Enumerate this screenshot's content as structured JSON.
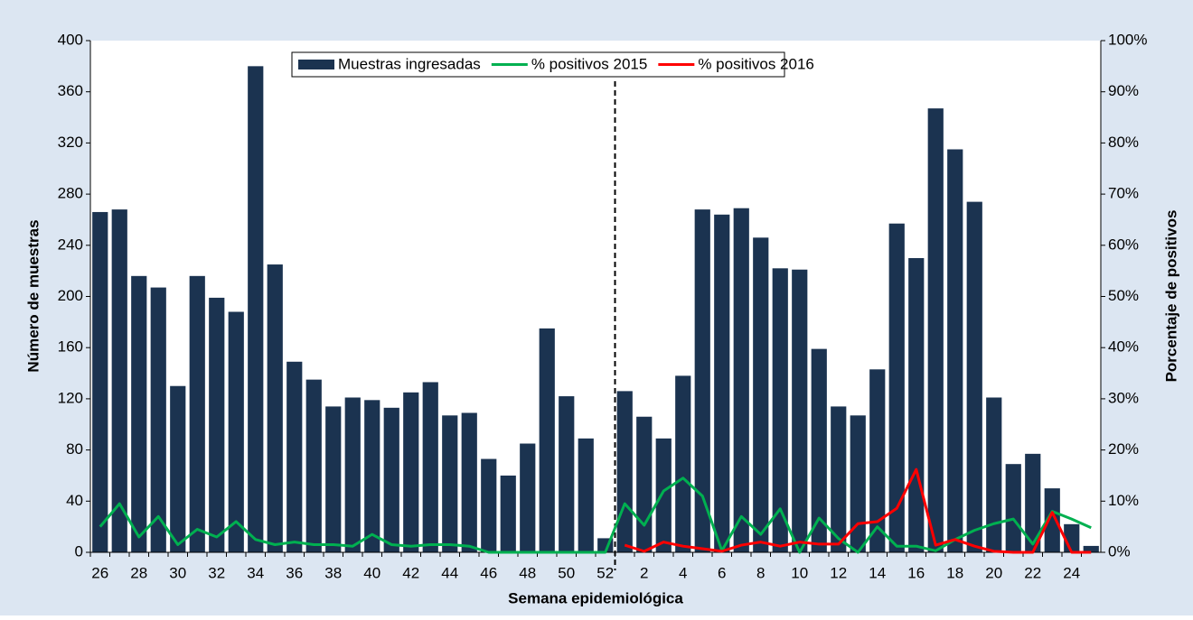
{
  "chart_data": {
    "type": "bar",
    "x_label": "Semana epidemiológica",
    "y_label": "Número de muestras",
    "y2_label": "Porcentaje de positivos",
    "categories": [
      26,
      null,
      28,
      null,
      30,
      null,
      32,
      null,
      34,
      null,
      36,
      null,
      38,
      null,
      40,
      null,
      42,
      null,
      44,
      null,
      46,
      null,
      48,
      null,
      50,
      null,
      52,
      null,
      2,
      null,
      4,
      null,
      6,
      null,
      8,
      null,
      10,
      null,
      12,
      null,
      14,
      null,
      16,
      null,
      18,
      null,
      20,
      null,
      22,
      null,
      24,
      null
    ],
    "series": [
      {
        "name": "Muestras ingresadas",
        "type": "bar",
        "color": "#1b3350",
        "values": [
          266,
          268,
          216,
          207,
          130,
          216,
          199,
          188,
          380,
          225,
          149,
          135,
          114,
          121,
          119,
          113,
          125,
          133,
          107,
          109,
          73,
          60,
          85,
          175,
          122,
          89,
          11,
          126,
          106,
          89,
          138,
          268,
          264,
          269,
          246,
          222,
          221,
          159,
          114,
          107,
          143,
          257,
          230,
          347,
          315,
          274,
          121,
          69,
          77,
          50,
          22,
          5
        ]
      },
      {
        "name": "% positivos 2015",
        "type": "line",
        "axis": "y2",
        "color": "#00b050",
        "values": [
          5,
          9.5,
          3,
          7,
          1.5,
          4.5,
          3,
          6,
          2.5,
          1.5,
          2,
          1.5,
          1.5,
          1.2,
          3.5,
          1.5,
          1.2,
          1.5,
          1.5,
          1.2,
          0,
          0,
          0,
          0,
          0,
          0,
          0,
          9.5,
          5.3,
          12,
          14.5,
          11,
          0.3,
          7,
          3.5,
          8.5,
          0,
          6.7,
          2.7,
          0,
          5,
          1.2,
          1.2,
          0.3,
          2.5,
          4.3,
          5.6,
          6.5,
          1.6,
          8,
          6.5,
          4.8
        ]
      },
      {
        "name": "% positivos 2016",
        "type": "line",
        "axis": "y2",
        "color": "#ff0000",
        "values": [
          null,
          null,
          null,
          null,
          null,
          null,
          null,
          null,
          null,
          null,
          null,
          null,
          null,
          null,
          null,
          null,
          null,
          null,
          null,
          null,
          null,
          null,
          null,
          null,
          null,
          null,
          null,
          1.4,
          0.2,
          2,
          1.2,
          0.7,
          0.2,
          1.4,
          2,
          1.2,
          2,
          1.6,
          1.6,
          5.6,
          6,
          8.6,
          16.2,
          1.4,
          2.5,
          1.2,
          0.2,
          0,
          0,
          7.8,
          0,
          0
        ]
      }
    ],
    "ylim": [
      0,
      400
    ],
    "yticks": [
      0,
      40,
      80,
      120,
      160,
      200,
      240,
      280,
      320,
      360,
      400
    ],
    "y2lim": [
      0,
      100
    ],
    "y2ticks": [
      {
        "value": 0,
        "label": "0%"
      },
      {
        "value": 10,
        "label": "10%"
      },
      {
        "value": 20,
        "label": "20%"
      },
      {
        "value": 30,
        "label": "30%"
      },
      {
        "value": 40,
        "label": "40%"
      },
      {
        "value": 50,
        "label": "50%"
      },
      {
        "value": 60,
        "label": "60%"
      },
      {
        "value": 70,
        "label": "70%"
      },
      {
        "value": 80,
        "label": "80%"
      },
      {
        "value": 90,
        "label": "90%"
      },
      {
        "value": 100,
        "label": "100%"
      }
    ],
    "legend": "top"
  }
}
